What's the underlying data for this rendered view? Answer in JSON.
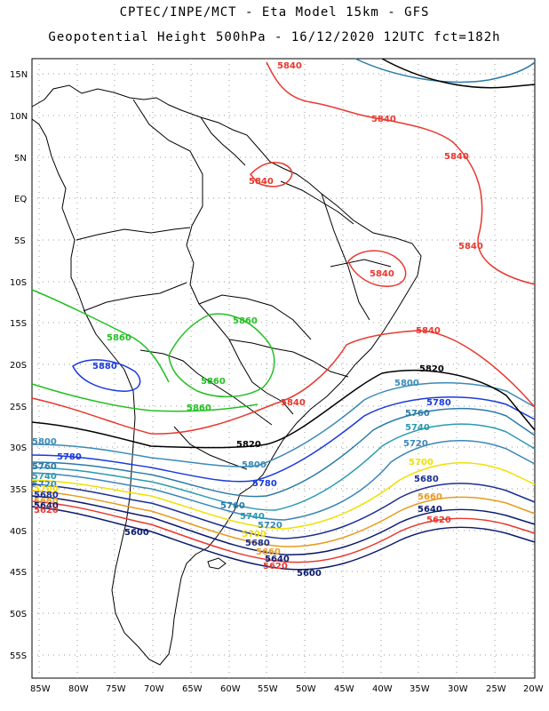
{
  "header": {
    "line1": "CPTEC/INPE/MCT -  Eta Model 15km - GFS",
    "line2": "Geopotential Height 500hPa - 16/12/2020 12UTC fct=182h"
  },
  "axes": {
    "lat_labels": [
      "15N",
      "10N",
      "5N",
      "EQ",
      "5S",
      "10S",
      "15S",
      "20S",
      "25S",
      "30S",
      "35S",
      "40S",
      "45S",
      "50S",
      "55S"
    ],
    "lon_labels": [
      "85W",
      "80W",
      "75W",
      "70W",
      "65W",
      "60W",
      "55W",
      "50W",
      "45W",
      "40W",
      "35W",
      "30W",
      "25W",
      "20W"
    ]
  },
  "colors": {
    "c5600": "#0b1a6e",
    "c5620": "#e8382e",
    "c5640": "#0b1a6e",
    "c5660": "#e89a20",
    "c5680": "#1b2f8f",
    "c5700": "#f0e000",
    "c5720": "#3a86b8",
    "c5740": "#2a9ab0",
    "c5760": "#2a7aa8",
    "c5780": "#1a3adc",
    "c5800": "#3a8ab8",
    "c5820": "#000000",
    "c5840": "#e8382e",
    "c5860": "#22c022",
    "c5880": "#1a3adc",
    "land": "#000000",
    "grid": "#9a9a9a"
  },
  "contours": {
    "labels_5840": [
      "5840",
      "5840",
      "5840",
      "5840",
      "5840",
      "5840",
      "5840",
      "5840"
    ],
    "label_5860": [
      "5860",
      "5860",
      "5860",
      "5860"
    ],
    "label_5880": "5880",
    "label_5820": [
      "5820",
      "5820"
    ],
    "label_5800": [
      "5800",
      "5800",
      "5800"
    ],
    "label_5780": [
      "5780",
      "5780",
      "5780"
    ],
    "label_5760": [
      "5760",
      "5760",
      "5760"
    ],
    "label_5740": [
      "5740",
      "5740",
      "5740"
    ],
    "label_5720": [
      "5720",
      "5720",
      "5720"
    ],
    "label_5700": [
      "5700",
      "5700",
      "5700"
    ],
    "label_5680": [
      "5680",
      "5680",
      "5680"
    ],
    "label_5660": [
      "5660",
      "5660",
      "5660"
    ],
    "label_5640": [
      "5640",
      "5640",
      "5640"
    ],
    "label_5620": [
      "5620",
      "5620",
      "5620"
    ],
    "label_5600": [
      "5600",
      "5600"
    ]
  }
}
